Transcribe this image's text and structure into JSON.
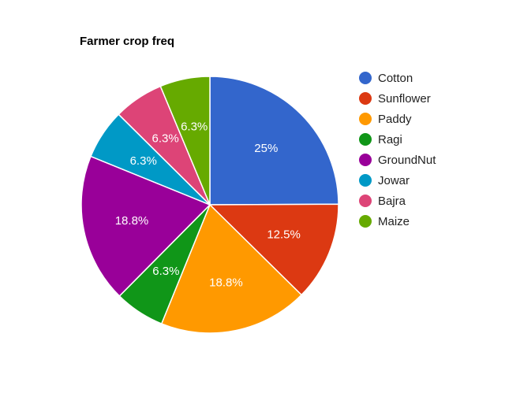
{
  "chart_data": {
    "type": "pie",
    "title": "Farmer crop freq",
    "legend_position": "right",
    "slices": [
      {
        "label": "Cotton",
        "value": 25,
        "display": "25%",
        "color": "#3366cc"
      },
      {
        "label": "Sunflower",
        "value": 12.5,
        "display": "12.5%",
        "color": "#dc3912"
      },
      {
        "label": "Paddy",
        "value": 18.8,
        "display": "18.8%",
        "color": "#ff9900"
      },
      {
        "label": "Ragi",
        "value": 6.3,
        "display": "6.3%",
        "color": "#109618"
      },
      {
        "label": "GroundNut",
        "value": 18.8,
        "display": "18.8%",
        "color": "#990099"
      },
      {
        "label": "Jowar",
        "value": 6.3,
        "display": "6.3%",
        "color": "#0099c6"
      },
      {
        "label": "Bajra",
        "value": 6.3,
        "display": "6.3%",
        "color": "#dd4477"
      },
      {
        "label": "Maize",
        "value": 6.3,
        "display": "6.3%",
        "color": "#66aa00"
      }
    ]
  }
}
